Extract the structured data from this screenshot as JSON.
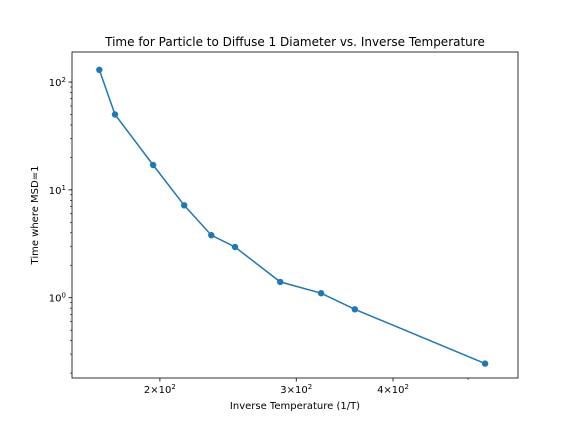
{
  "chart_data": {
    "type": "line",
    "title": "Time for Particle to Diffuse 1 Diameter vs. Inverse Temperature",
    "xlabel": "Inverse Temperature (1/T)",
    "ylabel": "Time where MSD=1",
    "xscale": "log",
    "yscale": "log",
    "xlim": [
      154,
      580
    ],
    "ylim": [
      0.18,
      190
    ],
    "grid": false,
    "legend": "none",
    "x_ticks": [
      {
        "value": 200,
        "base": "2",
        "mult": "×",
        "pow": "10",
        "exp": "2"
      },
      {
        "value": 300,
        "base": "3",
        "mult": "×",
        "pow": "10",
        "exp": "2"
      },
      {
        "value": 400,
        "base": "4",
        "mult": "×",
        "pow": "10",
        "exp": "2"
      }
    ],
    "x_minor_ticks": [
      500
    ],
    "y_ticks": [
      {
        "value": 1,
        "pow": "10",
        "exp": "0"
      },
      {
        "value": 10,
        "pow": "10",
        "exp": "1"
      },
      {
        "value": 100,
        "pow": "10",
        "exp": "2"
      }
    ],
    "series": [
      {
        "color": "#1f77b4",
        "marker": "circle",
        "x": [
          167,
          175,
          196,
          215,
          233,
          250,
          286,
          323,
          357,
          526
        ],
        "y": [
          130,
          50,
          17,
          7.2,
          3.8,
          2.95,
          1.4,
          1.1,
          0.78,
          0.245
        ]
      }
    ]
  }
}
